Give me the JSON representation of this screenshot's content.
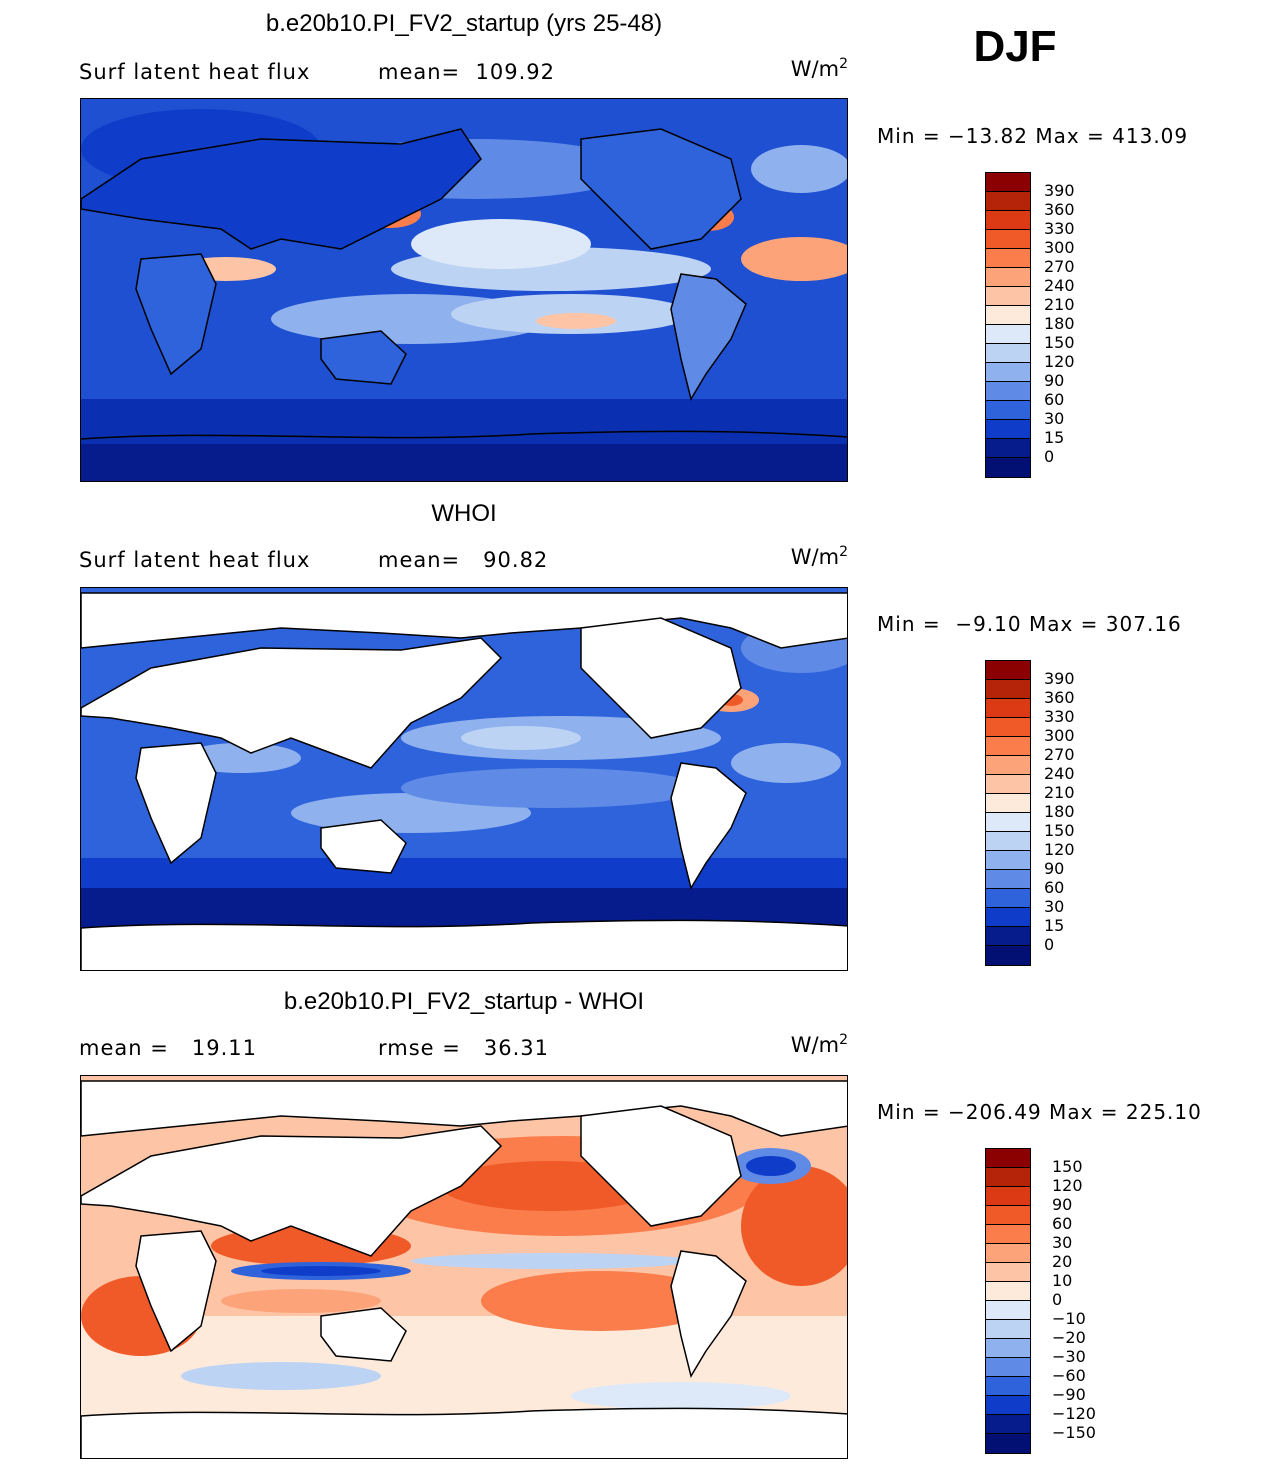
{
  "season": "DJF",
  "units_base": "W/m",
  "units_exp": "2",
  "panels": [
    {
      "title": "b.e20b10.PI_FV2_startup (yrs 25-48)",
      "left_label": "Surf latent heat flux",
      "right_label": "mean=  109.92",
      "minmax": "Min = −13.82 Max = 413.09",
      "colorbar_labels": [
        "390",
        "360",
        "330",
        "300",
        "270",
        "240",
        "210",
        "180",
        "150",
        "120",
        "90",
        "60",
        "30",
        "15",
        "0"
      ]
    },
    {
      "title": "WHOI",
      "left_label": "Surf latent heat flux",
      "right_label": "mean=   90.82",
      "minmax": "Min =  −9.10 Max = 307.16",
      "colorbar_labels": [
        "390",
        "360",
        "330",
        "300",
        "270",
        "240",
        "210",
        "180",
        "150",
        "120",
        "90",
        "60",
        "30",
        "15",
        "0"
      ]
    },
    {
      "title": "b.e20b10.PI_FV2_startup - WHOI",
      "left_label": "mean =   19.11",
      "right_label": "rmse =   36.31",
      "minmax": "Min = −206.49 Max = 225.10",
      "colorbar_labels": [
        "150",
        "120",
        "90",
        "60",
        "30",
        "20",
        "10",
        "0",
        "−10",
        "−20",
        "−30",
        "−60",
        "−90",
        "−120",
        "−150"
      ]
    }
  ],
  "colors": {
    "abs_scale": [
      "#8b0000",
      "#b52408",
      "#db3a14",
      "#f05a28",
      "#fa7d4b",
      "#fca37a",
      "#fdc5a5",
      "#feeadb",
      "#dde9f8",
      "#bcd3f4",
      "#8fb2ee",
      "#5f8be6",
      "#2f63db",
      "#0f3dc9",
      "#061b8c",
      "#011072"
    ],
    "diff_scale": [
      "#8b0000",
      "#b52408",
      "#db3a14",
      "#f05a28",
      "#fa7d4b",
      "#fca37a",
      "#fdc5a5",
      "#feeadb",
      "#dde9f8",
      "#bcd3f4",
      "#8fb2ee",
      "#5f8be6",
      "#2f63db",
      "#0f3dc9",
      "#061b8c",
      "#011072"
    ],
    "land": "#ffffff"
  }
}
